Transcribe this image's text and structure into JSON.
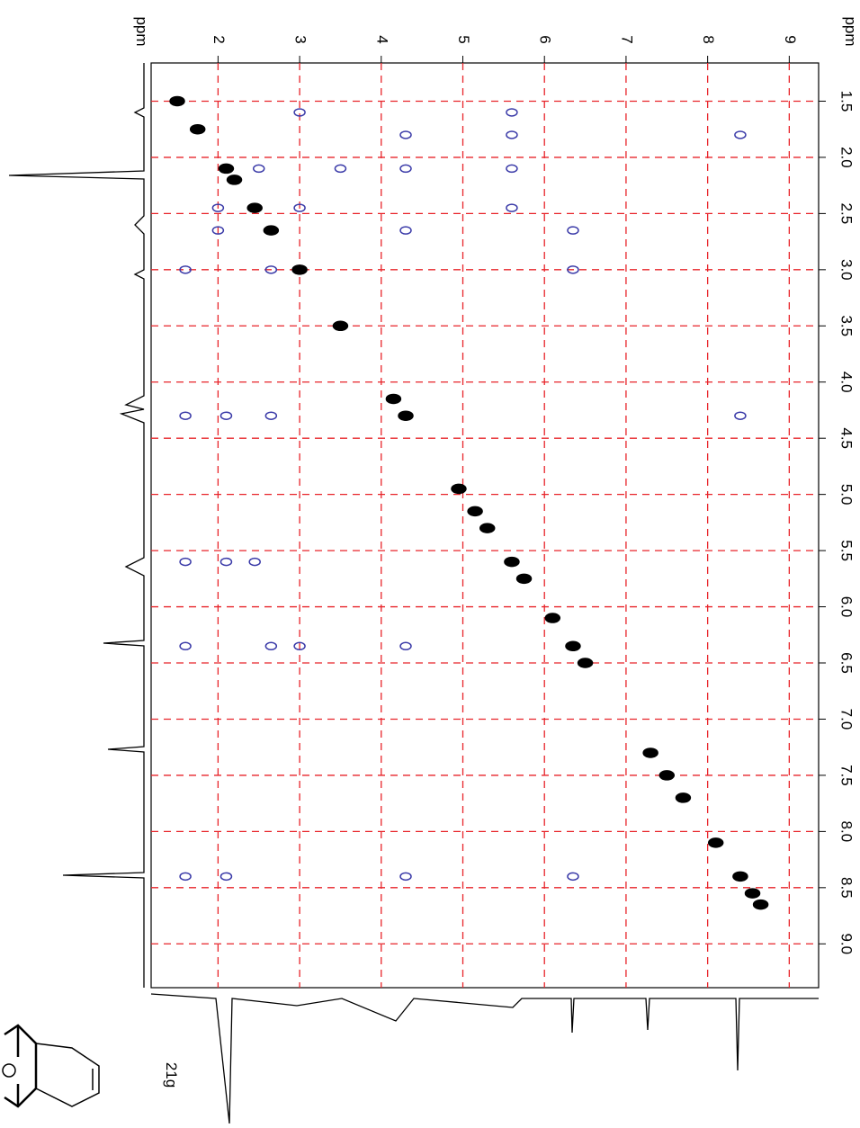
{
  "chart_data": {
    "type": "scatter",
    "x_label": "ppm",
    "y_label": "ppm",
    "compound_label": "21g",
    "xlim": [
      1.18,
      9.36
    ],
    "ylim": [
      1.16,
      9.39
    ],
    "xticks": [
      2,
      3,
      4,
      5,
      6,
      7,
      8,
      9
    ],
    "yticks": [
      {
        "value": 1.5,
        "label": "1.5"
      },
      {
        "value": 2.0,
        "label": "2.0"
      },
      {
        "value": 2.5,
        "label": "2.5"
      },
      {
        "value": 3.0,
        "label": "3.0"
      },
      {
        "value": 3.5,
        "label": "3.5"
      },
      {
        "value": 4.0,
        "label": "4.0"
      },
      {
        "value": 4.5,
        "label": "4.5"
      },
      {
        "value": 5.0,
        "label": "5.0"
      },
      {
        "value": 5.5,
        "label": "5.5"
      },
      {
        "value": 6.0,
        "label": "6.0"
      },
      {
        "value": 6.5,
        "label": "6.5"
      },
      {
        "value": 7.0,
        "label": "7.0"
      },
      {
        "value": 7.5,
        "label": "7.5"
      },
      {
        "value": 8.0,
        "label": "8.0"
      },
      {
        "value": 8.5,
        "label": "8.5"
      },
      {
        "value": 9.0,
        "label": "9.0"
      }
    ],
    "grid": true,
    "grid_color": "#e8242a",
    "series": [
      {
        "color": "#000000",
        "x": [
          1.5,
          1.75,
          2.1,
          2.2,
          2.45,
          2.65,
          3.0,
          3.5,
          4.15,
          4.3,
          4.95,
          5.15,
          5.3,
          5.6,
          5.75,
          6.1,
          6.35,
          6.5,
          7.3,
          7.5,
          7.7,
          8.1,
          8.4,
          8.55,
          8.65
        ],
        "y": [
          1.5,
          1.75,
          2.1,
          2.2,
          2.45,
          2.65,
          3.0,
          3.5,
          4.15,
          4.3,
          4.95,
          5.15,
          5.3,
          5.6,
          5.75,
          6.1,
          6.35,
          6.5,
          7.3,
          7.5,
          7.7,
          8.1,
          8.4,
          8.55,
          8.65
        ]
      },
      {
        "color": "#3a3aa8",
        "x": [
          3.0,
          5.6,
          4.3,
          5.6,
          8.4,
          2.5,
          3.5,
          4.3,
          5.6,
          2.0,
          3.0,
          5.6,
          2.0,
          4.3,
          6.35,
          1.6,
          2.65,
          6.35,
          1.6,
          2.1,
          2.65,
          8.4,
          1.6,
          2.1,
          2.45,
          1.6,
          2.65,
          3.0,
          4.3,
          1.6,
          2.1,
          4.3,
          6.35
        ],
        "y": [
          1.6,
          1.6,
          1.8,
          1.8,
          1.8,
          2.1,
          2.1,
          2.1,
          2.1,
          2.45,
          2.45,
          2.45,
          2.65,
          2.65,
          2.65,
          3.0,
          3.0,
          3.0,
          4.3,
          4.3,
          4.3,
          4.3,
          5.6,
          5.6,
          5.6,
          6.35,
          6.35,
          6.35,
          6.35,
          8.4,
          8.4,
          8.4,
          8.4
        ]
      }
    ]
  }
}
